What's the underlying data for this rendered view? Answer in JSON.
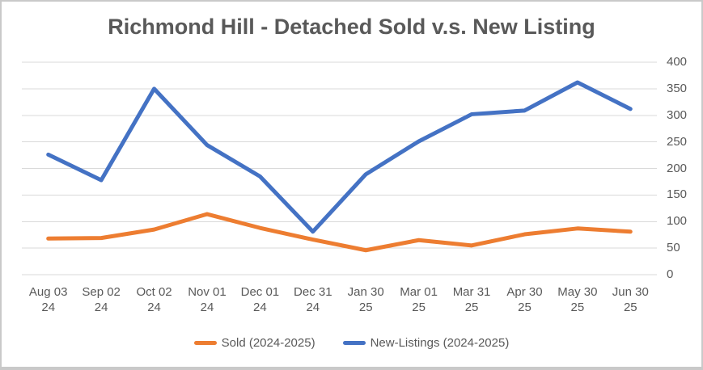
{
  "chart_data": {
    "type": "line",
    "title": "Richmond Hill - Detached Sold v.s. New Listing",
    "categories": [
      "Aug 03 24",
      "Sep 02 24",
      "Oct 02 24",
      "Nov 01 24",
      "Dec 01 24",
      "Dec 31 24",
      "Jan 30 25",
      "Mar 01 25",
      "Mar 31 25",
      "Apr 30 25",
      "May 30 25",
      "Jun 30 25"
    ],
    "series": [
      {
        "name": "Sold (2024-2025)",
        "color": "#ED7D31",
        "values": [
          68,
          69,
          85,
          114,
          88,
          66,
          46,
          65,
          55,
          76,
          87,
          81
        ]
      },
      {
        "name": "New-Listings (2024-2025)",
        "color": "#4472C4",
        "values": [
          226,
          178,
          350,
          244,
          185,
          81,
          189,
          251,
          302,
          309,
          362,
          312
        ]
      }
    ],
    "y_ticks": [
      0,
      50,
      100,
      150,
      200,
      250,
      300,
      350,
      400
    ],
    "ylim": [
      0,
      400
    ],
    "xlabel": "",
    "ylabel": "",
    "y_axis_side": "right",
    "grid": "horizontal",
    "legend_position": "bottom",
    "gridline_color": "#D9D9D9",
    "axis_label_color": "#595959",
    "title_color": "#595959",
    "background_color": "#FFFFFF",
    "frame_color": "#C9C9C9"
  }
}
